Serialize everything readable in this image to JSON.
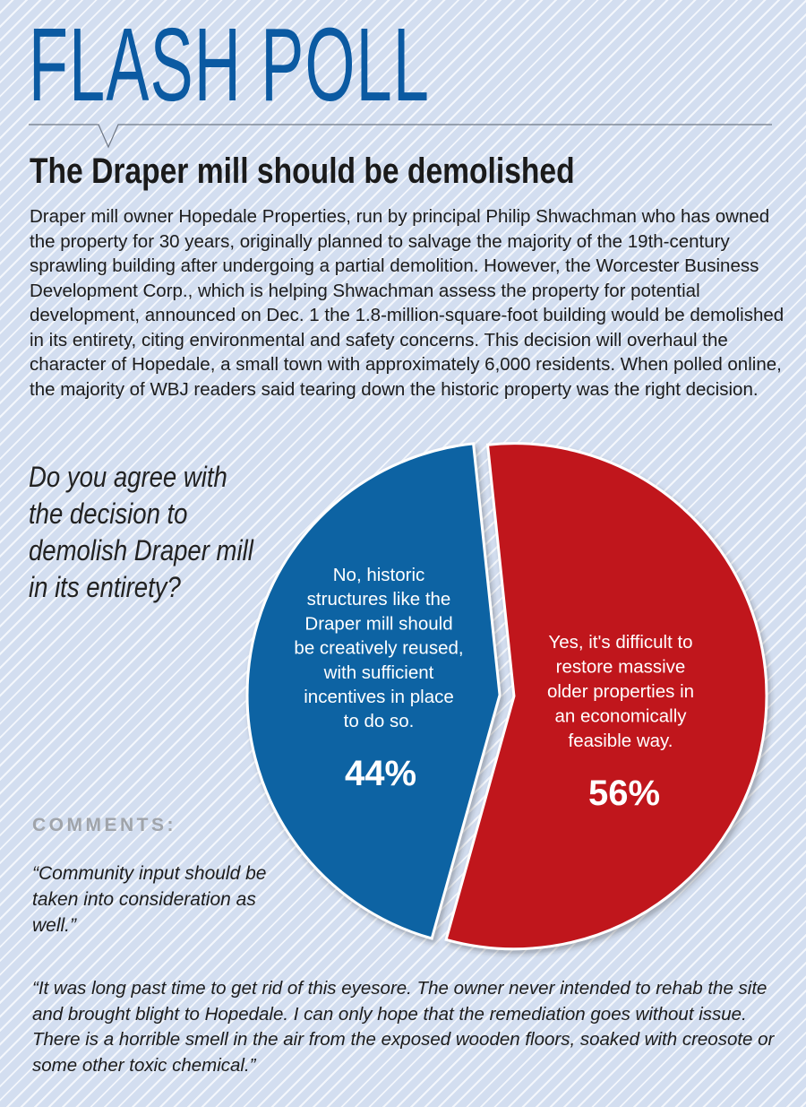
{
  "masthead": "FLASH POLL",
  "headline": "The Draper mill should be demolished",
  "intro": "Draper mill owner Hopedale Properties, run by principal Philip Shwachman who has owned the property for 30 years, originally planned to salvage the majority of the 19th-century sprawling building after undergoing a partial demolition. However, the Worcester Business Development Corp., which is helping Shwachman assess the property for potential development, announced on Dec. 1 the 1.8-million-square-foot building would be demolished in its entirety, citing environmental and safety concerns. This decision will overhaul the character of Hopedale, a small town with approximately 6,000 residents. When polled online, the majority of WBJ readers said tearing down the historic property was the right decision.",
  "question": "Do you agree with the decision to demolish Draper mill in its entirety?",
  "comments": {
    "label": "COMMENTS:",
    "items": [
      "“Community input should be taken into consideration as well.”",
      "“It was long past time to get rid of this eyesore. The owner never intended to rehab the site and brought blight to Hopedale. I can only hope that the remediation goes without issue. There is a horrible smell in the air from the exposed wooden floors, soaked with creosote or some other toxic chemical.”"
    ]
  },
  "chart_data": {
    "type": "pie",
    "title": "Do you agree with the decision to demolish Draper mill in its entirety?",
    "slices": [
      {
        "label_lines": [
          "No, historic",
          "structures like the",
          "Draper mill should",
          "be creatively reused,",
          "with sufficient",
          "incentives in place",
          "to do so."
        ],
        "value": 44,
        "value_label": "44%",
        "color": "#0a64a3"
      },
      {
        "label_lines": [
          "Yes, it's difficult to",
          "restore massive",
          "older properties in",
          "an economically",
          "feasible way."
        ],
        "value": 56,
        "value_label": "56%",
        "color": "#c0141e"
      }
    ],
    "legend": "none",
    "exploded": true
  },
  "colors": {
    "masthead": "#0b5aa2",
    "no_slice": "#0a64a3",
    "yes_slice": "#c0141e",
    "comments_label": "#a0a4aa"
  }
}
